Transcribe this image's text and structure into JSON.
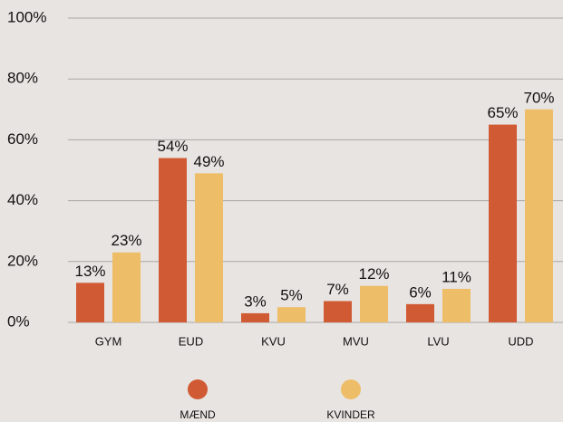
{
  "chart_data": {
    "type": "bar",
    "categories": [
      "GYM",
      "EUD",
      "KVU",
      "MVU",
      "LVU",
      "UDD"
    ],
    "series": [
      {
        "name": "MÆND",
        "color": "#d05a34",
        "values": [
          13,
          54,
          3,
          7,
          6,
          65
        ],
        "value_labels": [
          "13%",
          "54%",
          "3%",
          "7%",
          "6%",
          "65%"
        ]
      },
      {
        "name": "KVINDER",
        "color": "#eebd68",
        "values": [
          23,
          49,
          5,
          12,
          11,
          70
        ],
        "value_labels": [
          "23%",
          "49%",
          "5%",
          "12%",
          "11%",
          "70%"
        ]
      }
    ],
    "ylim": [
      0,
      100
    ],
    "yticks": [
      {
        "value": 0,
        "label": "0%"
      },
      {
        "value": 20,
        "label": "20%"
      },
      {
        "value": 40,
        "label": "40%"
      },
      {
        "value": 60,
        "label": "60%"
      },
      {
        "value": 80,
        "label": "80%"
      },
      {
        "value": 100,
        "label": "100%"
      }
    ],
    "grid": true,
    "legend": "bottom"
  }
}
